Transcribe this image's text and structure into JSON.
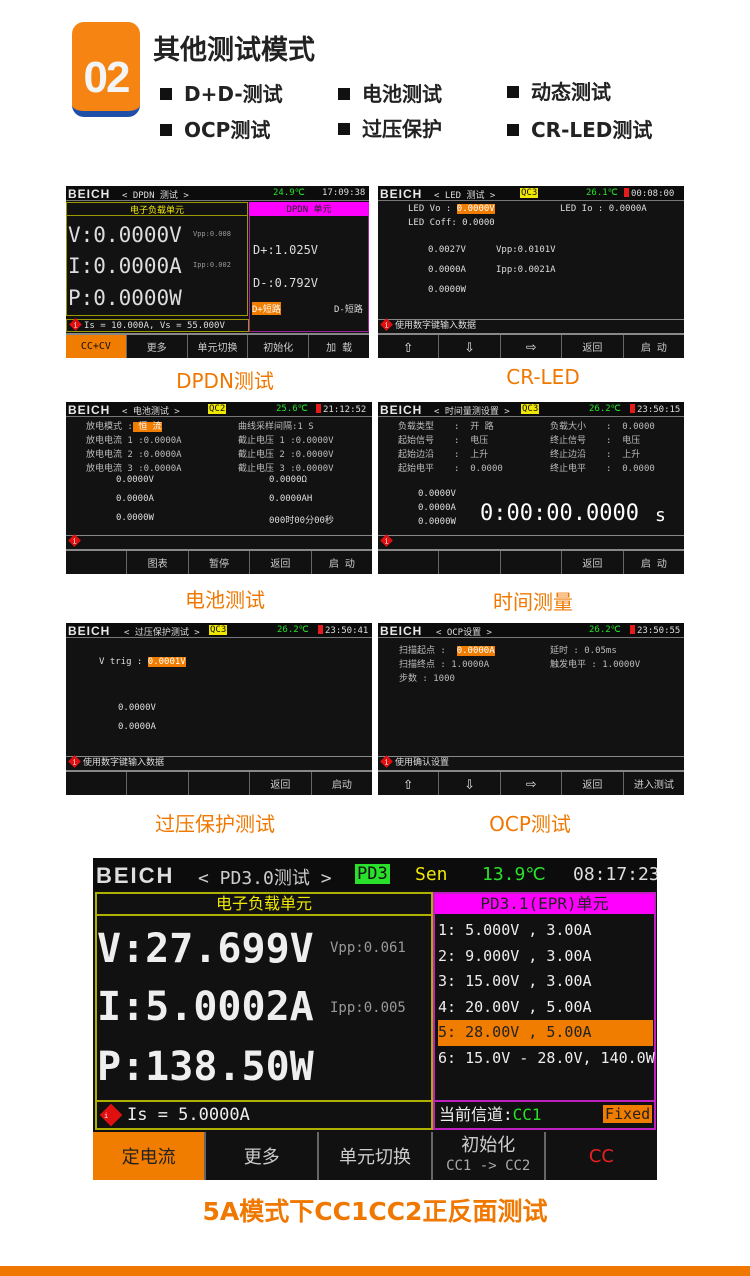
{
  "header": {
    "badge": "02",
    "title": "其他测试模式",
    "features": [
      "D+D-测试",
      "电池测试",
      "动态测试",
      "OCP测试",
      "过压保护",
      "CR-LED测试"
    ]
  },
  "colors": {
    "accent": "#f07800",
    "highlight": "#f07c00",
    "temp": "#29e02a",
    "badge": "#f0e800",
    "magenta": "#ff00ff"
  },
  "logo": "BEICH",
  "dpdn": {
    "caption": "DPDN测试",
    "title": "< DPDN 测试 >",
    "temp": "24.9℃",
    "time": "17:09:38",
    "left_title": "电子负载单元",
    "right_title": "DPDN 单元",
    "v": "V:0.0000V",
    "vpp": "Vpp:0.008",
    "i": "I:0.0000A",
    "ipp": "Ipp:0.002",
    "p": "P:0.0000W",
    "dplus": "D+:1.025V",
    "dminus": "D-:0.792V",
    "dplus_short": "D+短路",
    "dminus_short": "D-短路",
    "status": "Is = 10.000A, Vs = 55.000V",
    "buttons": [
      "CC+CV",
      "更多",
      "单元切换",
      "初始化",
      "加 载"
    ]
  },
  "led": {
    "caption": "CR-LED",
    "title": "< LED 测试 >",
    "badge": "QC3",
    "temp": "26.1℃",
    "time": "00:08:00",
    "vo_label": "LED Vo  : ",
    "vo": "0.0000V",
    "io": "LED Io  : 0.0000A",
    "coff": "LED Coff: 0.0000",
    "v": "0.0027V",
    "vpp": "Vpp:0.0101V",
    "i": "0.0000A",
    "ipp": "Ipp:0.0021A",
    "p": "0.0000W",
    "status": "使用数字键输入数据",
    "buttons": [
      "⇧",
      "⇩",
      "⇨",
      "返回",
      "启 动"
    ]
  },
  "battery": {
    "caption": "电池测试",
    "title": "< 电池测试 >",
    "badge": "QC2",
    "temp": "25.6℃",
    "time": "21:12:52",
    "mode_label": "放电模式    :",
    "mode": " 恒   流 ",
    "interval": "曲线采样间隔:1   S",
    "rows_left": [
      "放电电流 1 :0.0000A",
      "放电电流 2 :0.0000A",
      "放电电流 3 :0.0000A"
    ],
    "rows_right": [
      "截止电压 1 :0.0000V",
      "截止电压 2 :0.0000V",
      "截止电压 3 :0.0000V"
    ],
    "values_left": [
      "0.0000V",
      "0.0000A",
      "0.0000W"
    ],
    "values_right": [
      "0.0000Ω",
      "0.0000AH",
      "000时00分00秒"
    ],
    "buttons": [
      "",
      "图表",
      "暂停",
      "返回",
      "启 动"
    ]
  },
  "timing": {
    "caption": "时间测量",
    "title": "< 时间量测设置 >",
    "badge": "QC3",
    "temp": "26.2℃",
    "time": "23:50:15",
    "rows_left": [
      [
        "负载类型",
        "开  路"
      ],
      [
        "起始信号",
        "电压"
      ],
      [
        "起始边沿",
        "上升"
      ],
      [
        "起始电平",
        "0.0000"
      ]
    ],
    "rows_right": [
      [
        "负载大小",
        "0.0000"
      ],
      [
        "终止信号",
        "电压"
      ],
      [
        "终止边沿",
        "上升"
      ],
      [
        "终止电平",
        "0.0000"
      ]
    ],
    "values": [
      "0.0000V",
      "0.0000A",
      "0.0000W"
    ],
    "timer": "0:00:00.0000",
    "timer_unit": "s",
    "buttons": [
      "",
      "",
      "",
      "返回",
      "启 动"
    ]
  },
  "ovp": {
    "caption": "过压保护测试",
    "title": "< 过压保护测试 >",
    "badge": "QC3",
    "temp": "26.2℃",
    "time": "23:50:41",
    "vtrig_label": "V trig  : ",
    "vtrig": "0.0001V",
    "values": [
      "0.0000V",
      "0.0000A"
    ],
    "status": "使用数字键输入数据",
    "buttons": [
      "",
      "",
      "",
      "返回",
      "启动"
    ]
  },
  "ocp": {
    "caption": "OCP测试",
    "title": "< OCP设置 >",
    "temp": "26.2℃",
    "time": "23:50:55",
    "start_label": "扫描起点  :",
    "start": "0.0000A",
    "end": "扫描终点  :  1.0000A",
    "steps": "步数      :  1000",
    "delay": "延时     :   0.05ms",
    "trigger": "触发电平  :  1.0000V",
    "status": "使用确认设置",
    "buttons": [
      "⇧",
      "⇩",
      "⇨",
      "返回",
      "进入测试"
    ]
  },
  "pd": {
    "caption": "5A模式下CC1CC2正反面测试",
    "title": "< PD3.0测试 >",
    "badge": "PD3",
    "sen": "Sen",
    "temp": "13.9℃",
    "time": "08:17:23",
    "left_title": "电子负载单元",
    "right_title": "PD3.1(EPR)单元",
    "v": "V:27.699V",
    "vpp": "Vpp:0.061",
    "i": "I:5.0002A",
    "ipp": "Ipp:0.005",
    "p": "P:138.50W",
    "status": "Is = 5.0000A",
    "pdo": [
      "1: 5.000V , 3.00A",
      "2: 9.000V , 3.00A",
      "3: 15.00V , 3.00A",
      "4: 20.00V , 5.00A",
      "5: 28.00V , 5.00A",
      "6: 15.0V - 28.0V, 140.0W"
    ],
    "selected_pdo": 5,
    "channel_label": "当前信道:",
    "channel": "CC1",
    "fixed": "Fixed",
    "buttons": [
      "定电流",
      "更多",
      "单元切换",
      "初始化",
      "CC"
    ],
    "init_sub": "CC1 -> CC2"
  }
}
